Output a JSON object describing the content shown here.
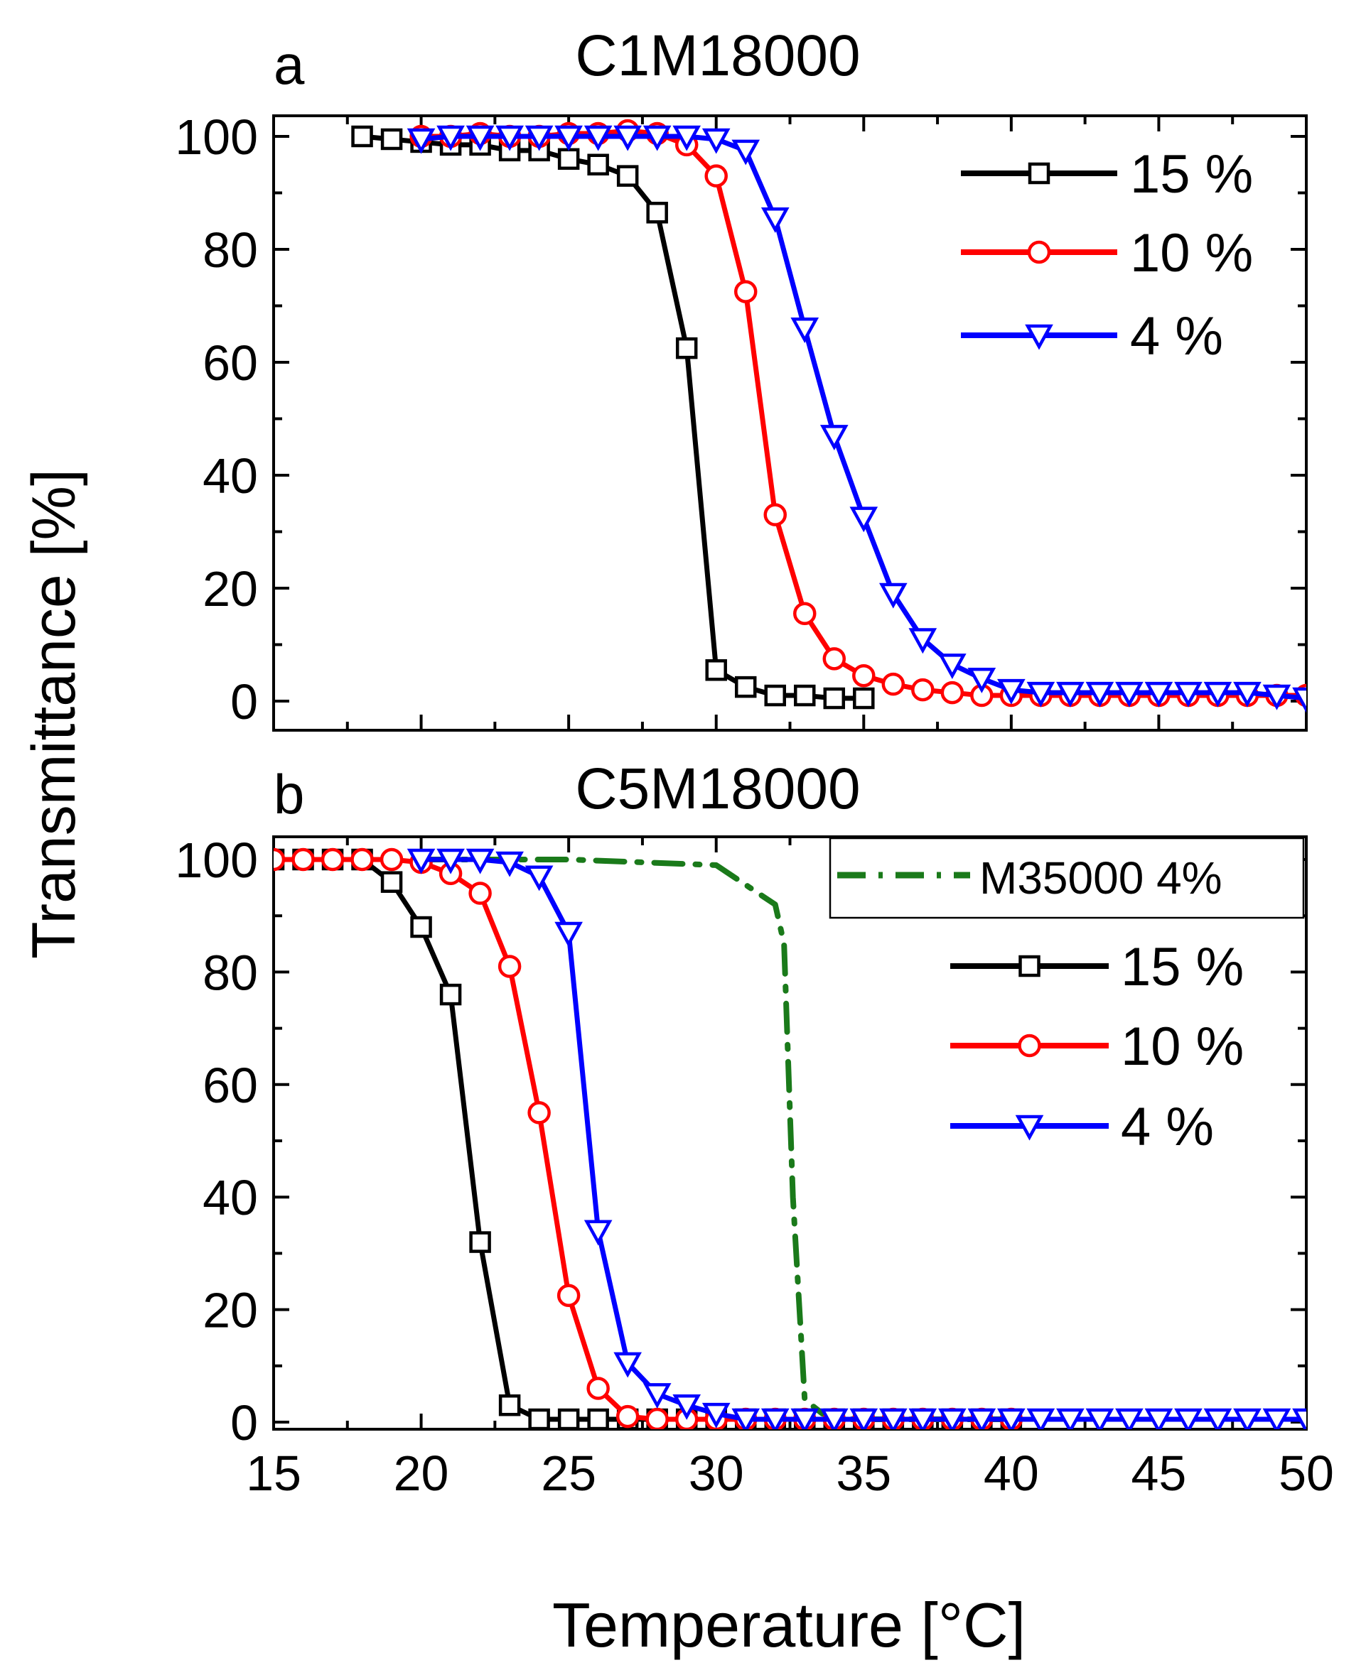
{
  "figure": {
    "ylabel": "Transmittance [%]",
    "xlabel": "Temperature [°C]",
    "xticks": [
      "15",
      "20",
      "25",
      "30",
      "35",
      "40",
      "45",
      "50"
    ],
    "yticks": [
      "0",
      "20",
      "40",
      "60",
      "80",
      "100"
    ]
  },
  "chart_data": [
    {
      "type": "line",
      "panel_letter": "a",
      "title": "C1M18000",
      "xlabel": "Temperature [°C]",
      "ylabel": "Transmittance [%]",
      "xlim": [
        15,
        50
      ],
      "ylim": [
        0,
        100
      ],
      "legend_position": "top-right",
      "series": [
        {
          "name": "15 %",
          "color": "#000000",
          "marker": "square",
          "line": "solid",
          "x": [
            18,
            19,
            20,
            21,
            22,
            23,
            24,
            25,
            26,
            27,
            28,
            29,
            30,
            31,
            32,
            33,
            34,
            35
          ],
          "y": [
            100,
            99.5,
            99,
            98.5,
            98.5,
            97.5,
            97.5,
            96,
            95,
            93,
            86.5,
            62.5,
            5.5,
            2.5,
            1,
            1,
            0.5,
            0.5
          ]
        },
        {
          "name": "10 %",
          "color": "#ff0000",
          "marker": "circle",
          "line": "solid",
          "x": [
            20,
            21,
            22,
            23,
            24,
            25,
            26,
            27,
            28,
            29,
            30,
            31,
            32,
            33,
            34,
            35,
            36,
            37,
            38,
            39,
            40,
            41,
            42,
            43,
            44,
            45,
            46,
            47,
            48,
            49,
            50
          ],
          "y": [
            100,
            100,
            100.5,
            100,
            100,
            100.5,
            100.5,
            101,
            100.5,
            98.5,
            93,
            72.5,
            33,
            15.5,
            7.5,
            4.5,
            3,
            2,
            1.5,
            1,
            1,
            1,
            1,
            1,
            1,
            1,
            1,
            1,
            1,
            1,
            1
          ]
        },
        {
          "name": "4 %",
          "color": "#0000ff",
          "marker": "triangle-down",
          "line": "solid",
          "x": [
            20,
            21,
            22,
            23,
            24,
            25,
            26,
            27,
            28,
            29,
            30,
            31,
            32,
            33,
            34,
            35,
            36,
            37,
            38,
            39,
            40,
            41,
            42,
            43,
            44,
            45,
            46,
            47,
            48,
            49,
            50
          ],
          "y": [
            99.5,
            100,
            100,
            100,
            100,
            100,
            100,
            100,
            100,
            100,
            99.5,
            97.5,
            85.5,
            66,
            47,
            32.5,
            19,
            11,
            6.5,
            4,
            2,
            1.5,
            1.5,
            1.5,
            1.5,
            1.5,
            1.5,
            1.5,
            1.5,
            1,
            0.5
          ]
        }
      ]
    },
    {
      "type": "line",
      "panel_letter": "b",
      "title": "C5M18000",
      "xlabel": "Temperature [°C]",
      "ylabel": "Transmittance [%]",
      "xlim": [
        15,
        50
      ],
      "ylim": [
        0,
        100
      ],
      "legend_position": "top-right",
      "series": [
        {
          "name": "M35000 4%",
          "color": "#1a7a1a",
          "marker": "none",
          "line": "dash-dot",
          "x": [
            20,
            25,
            30,
            32,
            32.3,
            32.6,
            33,
            33.6,
            34.5,
            35,
            36,
            37,
            38,
            39,
            40
          ],
          "y": [
            100,
            100,
            99,
            92,
            85,
            40,
            4,
            1.5,
            0.5,
            0.5,
            0.5,
            0.5,
            0.5,
            0.5,
            0.5
          ]
        },
        {
          "name": "15 %",
          "color": "#000000",
          "marker": "square",
          "line": "solid",
          "x": [
            15,
            16,
            17,
            18,
            19,
            20,
            21,
            22,
            23,
            24,
            25,
            26,
            27,
            28,
            29,
            30,
            31,
            32,
            33,
            34,
            35,
            36,
            37,
            38,
            39,
            40
          ],
          "y": [
            100,
            100,
            100,
            100,
            96,
            88,
            76,
            32,
            3,
            0.5,
            0.5,
            0.5,
            0.5,
            0.5,
            0.5,
            0.5,
            0.5,
            0.5,
            0.5,
            0.5,
            0.5,
            0.5,
            0.5,
            0.5,
            0.5,
            0.5
          ]
        },
        {
          "name": "10 %",
          "color": "#ff0000",
          "marker": "circle",
          "line": "solid",
          "x": [
            15,
            16,
            17,
            18,
            19,
            20,
            21,
            22,
            23,
            24,
            25,
            26,
            27,
            28,
            29,
            30,
            31,
            32,
            33,
            34,
            35,
            36,
            37,
            38,
            39,
            40
          ],
          "y": [
            100,
            100,
            100,
            100,
            100,
            99.5,
            97.5,
            94,
            81,
            55,
            22.5,
            6,
            1,
            0.5,
            0.5,
            0.5,
            0.5,
            0.5,
            0.5,
            0.5,
            0.5,
            0.5,
            0.5,
            0.5,
            0.5,
            0.5
          ]
        },
        {
          "name": "4 %",
          "color": "#0000ff",
          "marker": "triangle-down",
          "line": "solid",
          "x": [
            20,
            21,
            22,
            23,
            24,
            25,
            26,
            27,
            28,
            29,
            30,
            31,
            32,
            33,
            34,
            35,
            36,
            37,
            38,
            39,
            40,
            41,
            42,
            43,
            44,
            45,
            46,
            47,
            48,
            49,
            50
          ],
          "y": [
            100,
            100,
            100,
            99.5,
            97,
            87,
            34,
            10.5,
            5,
            3,
            1.5,
            0.5,
            0.5,
            0.5,
            0.5,
            0.5,
            0.5,
            0.5,
            0.5,
            0.5,
            0.5,
            0.5,
            0.5,
            0.5,
            0.5,
            0.5,
            0.5,
            0.5,
            0.5,
            0.5,
            0.5
          ]
        }
      ]
    }
  ]
}
